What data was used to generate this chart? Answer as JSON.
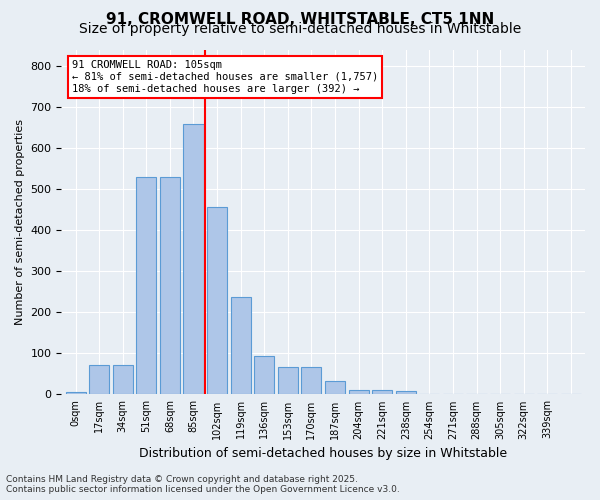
{
  "title": "91, CROMWELL ROAD, WHITSTABLE, CT5 1NN",
  "subtitle": "Size of property relative to semi-detached houses in Whitstable",
  "xlabel": "Distribution of semi-detached houses by size in Whitstable",
  "ylabel": "Number of semi-detached properties",
  "bar_values": [
    5,
    72,
    72,
    530,
    530,
    660,
    458,
    238,
    93,
    68,
    68,
    32,
    10,
    10,
    8,
    0,
    0,
    0,
    0,
    0,
    0,
    0
  ],
  "bar_labels": [
    "0sqm",
    "17sqm",
    "34sqm",
    "51sqm",
    "68sqm",
    "85sqm",
    "102sqm",
    "119sqm",
    "136sqm",
    "153sqm",
    "170sqm",
    "187sqm",
    "204sqm",
    "221sqm",
    "238sqm",
    "254sqm",
    "271sqm",
    "288sqm",
    "305sqm",
    "322sqm",
    "339sqm",
    ""
  ],
  "bar_color": "#aec6e8",
  "bar_edge_color": "#5b9bd5",
  "vline_x": 5.5,
  "vline_color": "red",
  "annotation_title": "91 CROMWELL ROAD: 105sqm",
  "annotation_line1": "← 81% of semi-detached houses are smaller (1,757)",
  "annotation_line2": "18% of semi-detached houses are larger (392) →",
  "annotation_box_color": "white",
  "annotation_box_edge": "red",
  "ylim": [
    0,
    840
  ],
  "yticks": [
    0,
    100,
    200,
    300,
    400,
    500,
    600,
    700,
    800
  ],
  "background_color": "#e8eef4",
  "footer_line1": "Contains HM Land Registry data © Crown copyright and database right 2025.",
  "footer_line2": "Contains public sector information licensed under the Open Government Licence v3.0.",
  "title_fontsize": 11,
  "subtitle_fontsize": 10
}
